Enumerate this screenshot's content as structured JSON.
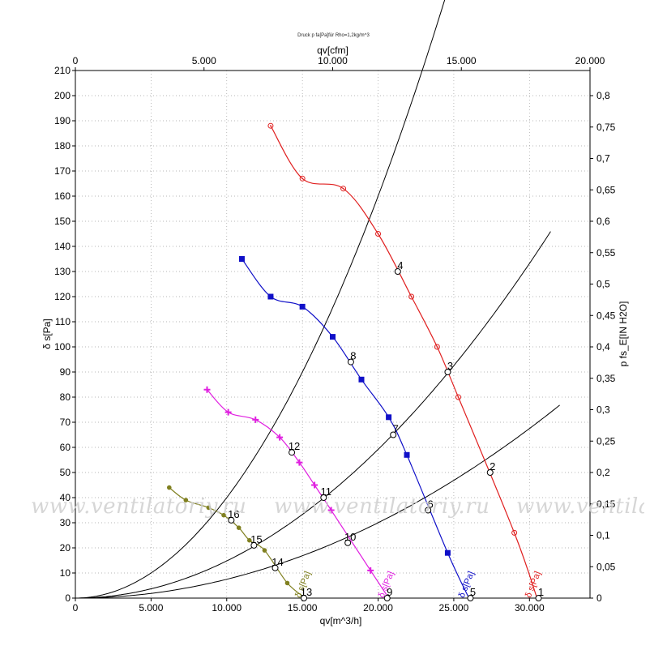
{
  "header": {
    "subtitle": "Druck p fa[Pa]für Rho=1,2kg/m^3"
  },
  "watermark": {
    "text": "www.ventilatoriy.ru"
  },
  "chart_data": {
    "type": "line",
    "xlabel": "qv[m^3/h]",
    "x2label": "qv[cfm]",
    "ylabel": "δ s[Pa]",
    "y2label": "p fs_E[IN H2O]",
    "xlim": [
      0,
      34000
    ],
    "ylim": [
      0,
      210
    ],
    "x2lim": [
      0,
      20000
    ],
    "y2lim": [
      0,
      0.84
    ],
    "xticks": [
      0,
      5000,
      10000,
      15000,
      20000,
      25000,
      30000
    ],
    "xtick_labels": [
      "0",
      "5.000",
      "10.000",
      "15.000",
      "20.000",
      "25.000",
      "30.000"
    ],
    "x2ticks": [
      0,
      5000,
      10000,
      15000,
      20000
    ],
    "x2tick_labels": [
      "0",
      "5.000",
      "10.000",
      "15.000",
      "20.000"
    ],
    "yticks": [
      0,
      10,
      20,
      30,
      40,
      50,
      60,
      70,
      80,
      90,
      100,
      110,
      120,
      130,
      140,
      150,
      160,
      170,
      180,
      190,
      200,
      210
    ],
    "y2ticks": [
      0,
      0.05,
      0.1,
      0.15,
      0.2,
      0.25,
      0.3,
      0.35,
      0.4,
      0.45,
      0.5,
      0.55,
      0.6,
      0.65,
      0.7,
      0.75,
      0.8
    ],
    "y2tick_labels": [
      "0",
      "0,05",
      "0,1",
      "0,15",
      "0,2",
      "0,25",
      "0,3",
      "0,35",
      "0,4",
      "0,45",
      "0,5",
      "0,55",
      "0,6",
      "0,65",
      "0,7",
      "0,75",
      "0,8"
    ],
    "grid": true,
    "series": [
      {
        "name": "δ s[Pa]",
        "color": "#e02020",
        "marker": "circle-dot",
        "x": [
          12900,
          15000,
          17700,
          20000,
          22200,
          23900,
          25300,
          29000,
          30500
        ],
        "y": [
          188,
          167,
          163,
          145,
          120,
          100,
          80,
          26,
          0
        ]
      },
      {
        "name": "δ s[Pa]",
        "color": "#1010c8",
        "marker": "square",
        "x": [
          11000,
          12900,
          15000,
          17000,
          18900,
          20700,
          21900,
          24600,
          26000
        ],
        "y": [
          135,
          120,
          116,
          104,
          87,
          72,
          57,
          18,
          0
        ]
      },
      {
        "name": "δ s[Pa]",
        "color": "#e020e0",
        "marker": "cross",
        "x": [
          8700,
          10100,
          11900,
          13500,
          14800,
          15800,
          16900,
          19500,
          20700
        ],
        "y": [
          83,
          74,
          71,
          64,
          54,
          45,
          35,
          11,
          0
        ]
      },
      {
        "name": "δ s[Pa]",
        "color": "#808020",
        "marker": "dot",
        "x": [
          6200,
          7300,
          8800,
          9800,
          10800,
          11500,
          12500,
          14000,
          15200
        ],
        "y": [
          44,
          39,
          36,
          33,
          28,
          23,
          19,
          6,
          0
        ]
      }
    ],
    "system_curves": [
      {
        "k": 4e-07,
        "xmax": 26500
      },
      {
        "k": 1.48e-07,
        "xmax": 31500
      },
      {
        "k": 7.5e-08,
        "xmax": 32000
      }
    ],
    "operating_points": [
      {
        "label": "1",
        "x": 30600,
        "y": 0
      },
      {
        "label": "2",
        "x": 27400,
        "y": 50
      },
      {
        "label": "3",
        "x": 24600,
        "y": 90
      },
      {
        "label": "4",
        "x": 21300,
        "y": 130
      },
      {
        "label": "5",
        "x": 26100,
        "y": 0
      },
      {
        "label": "6",
        "x": 23300,
        "y": 35
      },
      {
        "label": "7",
        "x": 21000,
        "y": 65
      },
      {
        "label": "8",
        "x": 18200,
        "y": 94
      },
      {
        "label": "9",
        "x": 20600,
        "y": 0
      },
      {
        "label": "10",
        "x": 18000,
        "y": 22
      },
      {
        "label": "11",
        "x": 16400,
        "y": 40
      },
      {
        "label": "12",
        "x": 14300,
        "y": 58
      },
      {
        "label": "13",
        "x": 15100,
        "y": 0
      },
      {
        "label": "14",
        "x": 13200,
        "y": 12
      },
      {
        "label": "15",
        "x": 11800,
        "y": 21
      },
      {
        "label": "16",
        "x": 10300,
        "y": 31
      }
    ],
    "series_end_labels": [
      {
        "text": "δ s[Pa]",
        "x": 30400,
        "y": 5,
        "color": "#e02020"
      },
      {
        "text": "δ s[Pa]",
        "x": 26000,
        "y": 5,
        "color": "#1010c8"
      },
      {
        "text": "δ s[Pa]",
        "x": 20700,
        "y": 5,
        "color": "#e020e0"
      },
      {
        "text": "δ s[Pa]",
        "x": 15200,
        "y": 5,
        "color": "#808020"
      }
    ]
  }
}
